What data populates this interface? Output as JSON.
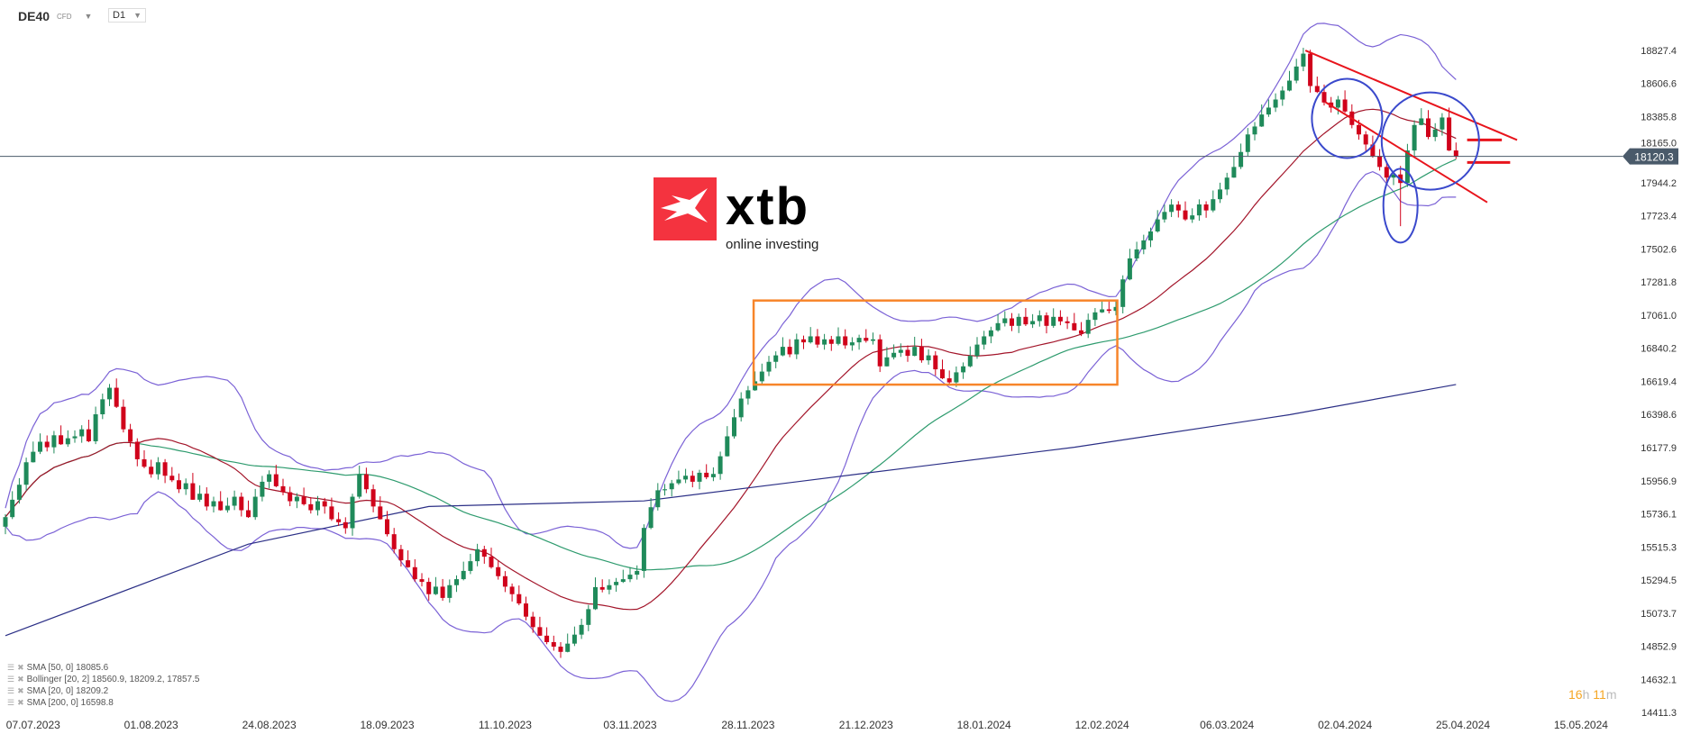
{
  "header": {
    "symbol": "DE40",
    "symbol_type": "CFD",
    "timeframe": "D1"
  },
  "logo": {
    "brand": "xtb",
    "tagline": "online investing",
    "color": "#f4333f"
  },
  "legend": [
    {
      "label": "SMA [50, 0] 18085.6"
    },
    {
      "label": "Bollinger  [20, 2] 18560.9,  18209.2,  17857.5"
    },
    {
      "label": "SMA [20, 0] 18209.2"
    },
    {
      "label": "SMA [200, 0] 16598.8"
    }
  ],
  "timer": {
    "hours": "16",
    "h": "h",
    "minutes": "11",
    "m": "m"
  },
  "colors": {
    "up": "#1f8a5a",
    "down": "#d0021b",
    "sma20": "#a3152a",
    "sma50": "#2e9b6e",
    "bollinger": "#7b62d6",
    "sma200": "#2b2f86",
    "price_line": "#4a5a6a",
    "annotation_box": "#f7852a",
    "annotation_lines": "#e8141c",
    "annotation_circles": "#3a49cc"
  },
  "chart_data": {
    "type": "candlestick",
    "symbol": "DE40",
    "current_price": "18120.3",
    "ylim": [
      14411.3,
      18827.4
    ],
    "y_ticks": [
      "18827.4",
      "18606.6",
      "18385.8",
      "18165.0",
      "17944.2",
      "17723.4",
      "17502.6",
      "17281.8",
      "17061.0",
      "16840.2",
      "16619.4",
      "16398.6",
      "16177.9",
      "15956.9",
      "15736.1",
      "15515.3",
      "15294.5",
      "15073.7",
      "14852.9",
      "14632.1",
      "14411.3"
    ],
    "x_ticks": [
      {
        "bar": 4,
        "label": "07.07.2023"
      },
      {
        "bar": 21,
        "label": "01.08.2023"
      },
      {
        "bar": 38,
        "label": "24.08.2023"
      },
      {
        "bar": 55,
        "label": "18.09.2023"
      },
      {
        "bar": 72,
        "label": "11.10.2023"
      },
      {
        "bar": 90,
        "label": "03.11.2023"
      },
      {
        "bar": 107,
        "label": "28.11.2023"
      },
      {
        "bar": 124,
        "label": "21.12.2023"
      },
      {
        "bar": 141,
        "label": "18.01.2024"
      },
      {
        "bar": 158,
        "label": "12.02.2024"
      },
      {
        "bar": 176,
        "label": "06.03.2024"
      },
      {
        "bar": 193,
        "label": "02.04.2024"
      },
      {
        "bar": 210,
        "label": "25.04.2024"
      },
      {
        "bar": 227,
        "label": "15.05.2024"
      }
    ],
    "first_open": 15650,
    "closes": [
      15714,
      15830,
      15930,
      16080,
      16150,
      16217,
      16180,
      16260,
      16200,
      16240,
      16253,
      16300,
      16220,
      16400,
      16500,
      16577,
      16450,
      16300,
      16217,
      16100,
      16050,
      16000,
      16080,
      15990,
      15960,
      15900,
      15940,
      15830,
      15870,
      15785,
      15820,
      15760,
      15790,
      15850,
      15760,
      15714,
      15850,
      15950,
      16000,
      15920,
      15880,
      15820,
      15850,
      15800,
      15760,
      15820,
      15785,
      15700,
      15680,
      15640,
      15850,
      16000,
      15900,
      15785,
      15700,
      15600,
      15500,
      15426,
      15380,
      15300,
      15282,
      15200,
      15250,
      15175,
      15260,
      15300,
      15355,
      15420,
      15500,
      15450,
      15380,
      15320,
      15250,
      15200,
      15138,
      15050,
      14980,
      14923,
      14880,
      14850,
      14815,
      14870,
      14930,
      14995,
      15100,
      15247,
      15230,
      15260,
      15282,
      15300,
      15330,
      15355,
      15642,
      15780,
      15893,
      15900,
      15940,
      15965,
      15990,
      15950,
      16010,
      15980,
      16002,
      16120,
      16253,
      16380,
      16505,
      16560,
      16620,
      16685,
      16750,
      16793,
      16850,
      16800,
      16900,
      16880,
      16920,
      16865,
      16900,
      16870,
      16920,
      16860,
      16880,
      16910,
      16890,
      16900,
      16720,
      16780,
      16810,
      16830,
      16790,
      16850,
      16760,
      16793,
      16700,
      16640,
      16613,
      16680,
      16720,
      16790,
      16865,
      16920,
      16960,
      17008,
      17040,
      16990,
      17050,
      17000,
      17022,
      17060,
      16990,
      17050,
      17020,
      17008,
      16960,
      16937,
      17030,
      17080,
      17100,
      17090,
      17116,
      17300,
      17440,
      17500,
      17560,
      17620,
      17700,
      17750,
      17799,
      17760,
      17700,
      17727,
      17800,
      17760,
      17835,
      17900,
      17979,
      18050,
      18150,
      18267,
      18320,
      18400,
      18446,
      18500,
      18560,
      18626,
      18720,
      18806,
      18590,
      18550,
      18480,
      18446,
      18500,
      18420,
      18330,
      18267,
      18200,
      18123,
      18050,
      17979,
      18000,
      17943,
      18160,
      18330,
      18374,
      18250,
      18300,
      18380,
      18160,
      18120.3
    ],
    "notable_wicks": [
      {
        "bar": 201,
        "low": 17655
      }
    ],
    "sma200": [
      {
        "bar": 0,
        "value": 14923
      },
      {
        "bar": 35,
        "value": 15534
      },
      {
        "bar": 61,
        "value": 15785
      },
      {
        "bar": 92,
        "value": 15822
      },
      {
        "bar": 123,
        "value": 16002
      },
      {
        "bar": 154,
        "value": 16180
      },
      {
        "bar": 185,
        "value": 16397
      },
      {
        "bar": 209,
        "value": 16598.8
      }
    ],
    "indicators": [
      "SMA 20",
      "SMA 50",
      "SMA 200",
      "Bollinger 20, 2"
    ],
    "grid": false
  }
}
